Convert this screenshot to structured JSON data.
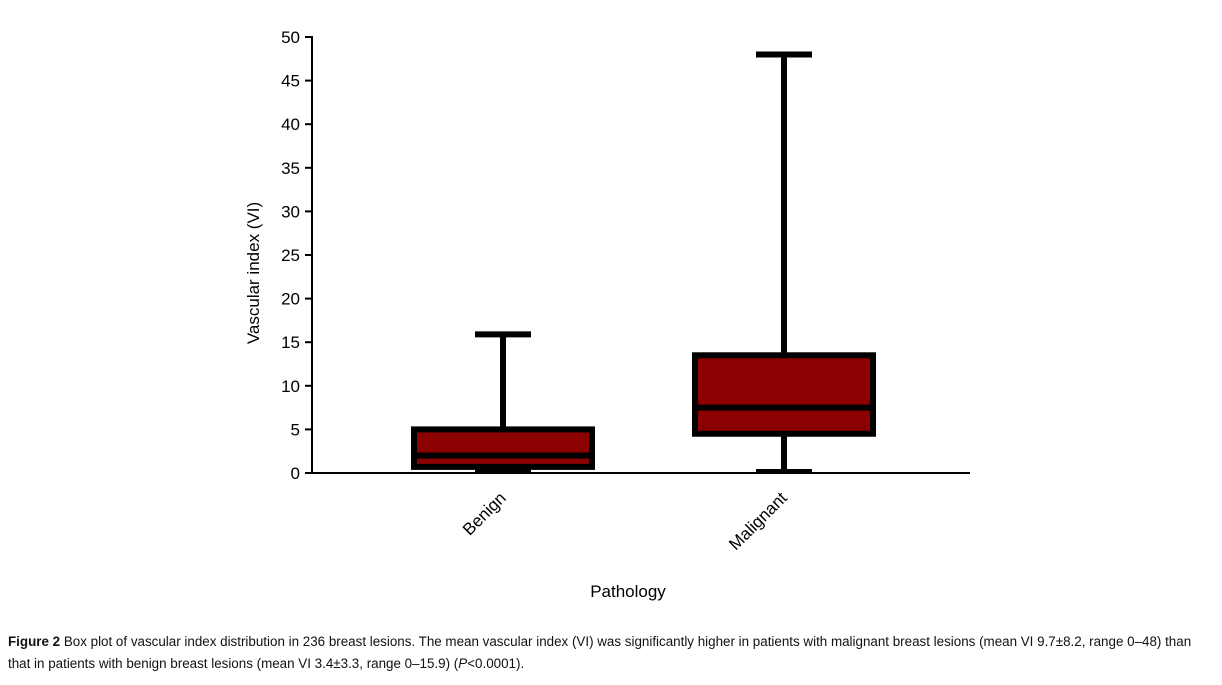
{
  "chart_data": {
    "type": "box",
    "x_label": "Pathology",
    "y_label": "Vascular index (VI)",
    "categories": [
      "Benign",
      "Malignant"
    ],
    "boxes": [
      {
        "min": 0,
        "q1": 0.7,
        "median": 2,
        "q3": 5,
        "max": 15.9
      },
      {
        "min": 0,
        "q1": 4.5,
        "median": 7.5,
        "q3": 13.5,
        "max": 48
      }
    ],
    "color": "#8b0000",
    "ylim": [
      0,
      50
    ],
    "yticks": [
      0,
      5,
      10,
      15,
      20,
      25,
      30,
      35,
      40,
      45,
      50
    ]
  },
  "caption": {
    "label": "Figure 2",
    "text": "Box plot of vascular index distribution in 236 breast lesions. The mean vascular index (VI) was significantly higher in patients with malignant breast lesions (mean VI 9.7±8.2, range 0–48) than that in patients with benign breast lesions (mean VI 3.4±3.3, range 0–15.9) (",
    "italic": "P",
    "text_end": "<0.0001)."
  }
}
